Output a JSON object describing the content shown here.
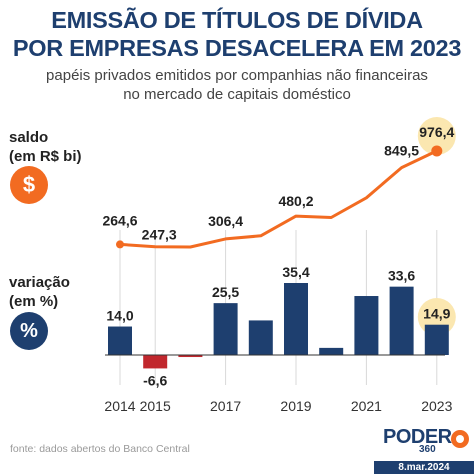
{
  "header": {
    "title_line1": "EMISSÃO DE TÍTULOS DE DÍVIDA",
    "title_line2": "POR EMPRESAS DESACELERA EM 2023",
    "subtitle_line1": "papéis privados emitidos por companhias não financeiras",
    "subtitle_line2": "no mercado de capitais doméstico"
  },
  "legend_left": {
    "saldo_line1": "saldo",
    "saldo_line2": "(em R$ bi)",
    "saldo_icon": "$",
    "variacao_line1": "variação",
    "variacao_line2": "(em %)",
    "variacao_icon": "%"
  },
  "colors": {
    "line": "#f26b21",
    "bar_positive": "#1e3f6f",
    "bar_negative": "#c1272d",
    "highlight": "#fbe7b0",
    "title": "#1e3f6f"
  },
  "chart_data": [
    {
      "type": "line",
      "x": [
        2014,
        2015,
        2016,
        2017,
        2018,
        2019,
        2020,
        2021,
        2022,
        2023
      ],
      "values": [
        264.6,
        247.3,
        245.0,
        306.4,
        330.0,
        480.2,
        470.0,
        620.0,
        849.5,
        976.4
      ],
      "data_labels": [
        {
          "year": 2014,
          "label": "264,6"
        },
        {
          "year": 2015,
          "label": "247,3"
        },
        {
          "year": 2017,
          "label": "306,4"
        },
        {
          "year": 2019,
          "label": "480,2"
        },
        {
          "year": 2022,
          "label": "849,5"
        },
        {
          "year": 2023,
          "label": "976,4"
        }
      ],
      "ylabel": "saldo (em R$ bi)"
    },
    {
      "type": "bar",
      "categories": [
        2014,
        2015,
        2016,
        2017,
        2018,
        2019,
        2020,
        2021,
        2022,
        2023
      ],
      "values": [
        14.0,
        -6.6,
        -1.0,
        25.5,
        17.0,
        35.4,
        3.5,
        29.0,
        33.6,
        14.9
      ],
      "data_labels": [
        {
          "year": 2014,
          "label": "14,0"
        },
        {
          "year": 2015,
          "label": "-6,6"
        },
        {
          "year": 2017,
          "label": "25,5"
        },
        {
          "year": 2019,
          "label": "35,4"
        },
        {
          "year": 2022,
          "label": "33,6"
        },
        {
          "year": 2023,
          "label": "14,9"
        }
      ],
      "ylabel": "variação (em %)"
    }
  ],
  "x_axis": {
    "tick_labels": [
      "2014",
      "2015",
      "2017",
      "2019",
      "2021",
      "2023"
    ]
  },
  "footer": {
    "source": "fonte: dados abertos do Banco Central",
    "logo_main": "PODER",
    "logo_sub": "360",
    "date": "8.mar.2024"
  }
}
